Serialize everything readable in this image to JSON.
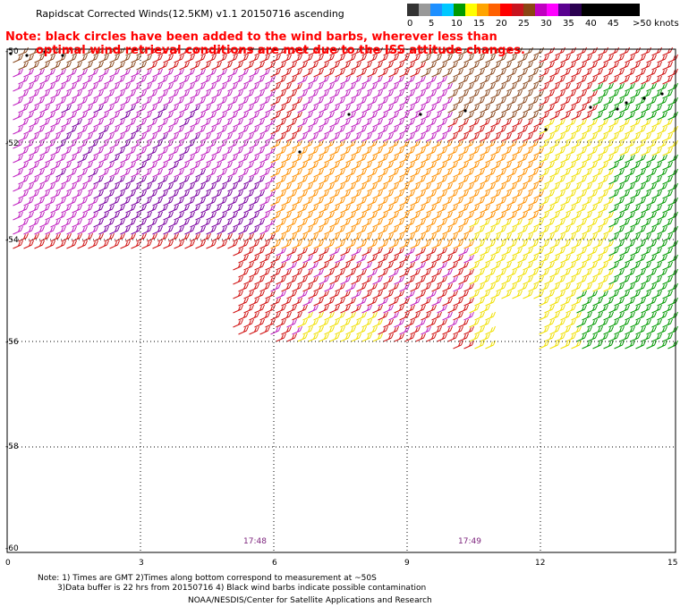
{
  "title": "Rapidscat Corrected Winds(12.5KM) v1.1 20150716 ascending",
  "note_line1": "Note: black circles have been added to the wind barbs, wherever less than",
  "note_line2": "optimal wind retrieval conditions are met due to the ISS attitude changes.",
  "legend": {
    "ticks": [
      "0",
      "5",
      "10",
      "15",
      "20",
      "25",
      "30",
      "35",
      "40",
      "45",
      ">50 knots"
    ],
    "colors": [
      "#333333",
      "#999999",
      "#1e90ff",
      "#00c8ff",
      "#009a00",
      "#ffff00",
      "#ffa500",
      "#ff6000",
      "#ff0000",
      "#c8141e",
      "#8b4513",
      "#c000c0",
      "#ff00ff",
      "#5a0090",
      "#2a0050",
      "#000000",
      "#000000",
      "#000000",
      "#000000",
      "#000000"
    ]
  },
  "x_axis_labels": [
    "0",
    "3",
    "6",
    "9",
    "12",
    "15"
  ],
  "y_axis_labels": [
    "-50",
    "-52",
    "-54",
    "-56",
    "-58",
    "-60"
  ],
  "time_labels": [
    "17:48",
    "17:49"
  ],
  "footer_line1": "Note: 1) Times are GMT 2)Times along bottom correspond to measurement at ~50S",
  "footer_line2": "3)Data buffer is 22 hrs from 20150716 4) Black wind barbs indicate possible contamination",
  "credit": "NOAA/NESDIS/Center for Satellite Applications and Research",
  "wind_speed_colors": {
    "green": "#009a00",
    "yellow": "#f0e000",
    "orange": "#ff9000",
    "red_orange": "#e04010",
    "red": "#d01010",
    "brown": "#8b4a20",
    "magenta": "#c020c0",
    "purple": "#7a00a0",
    "dark_purple": "#20003a"
  }
}
